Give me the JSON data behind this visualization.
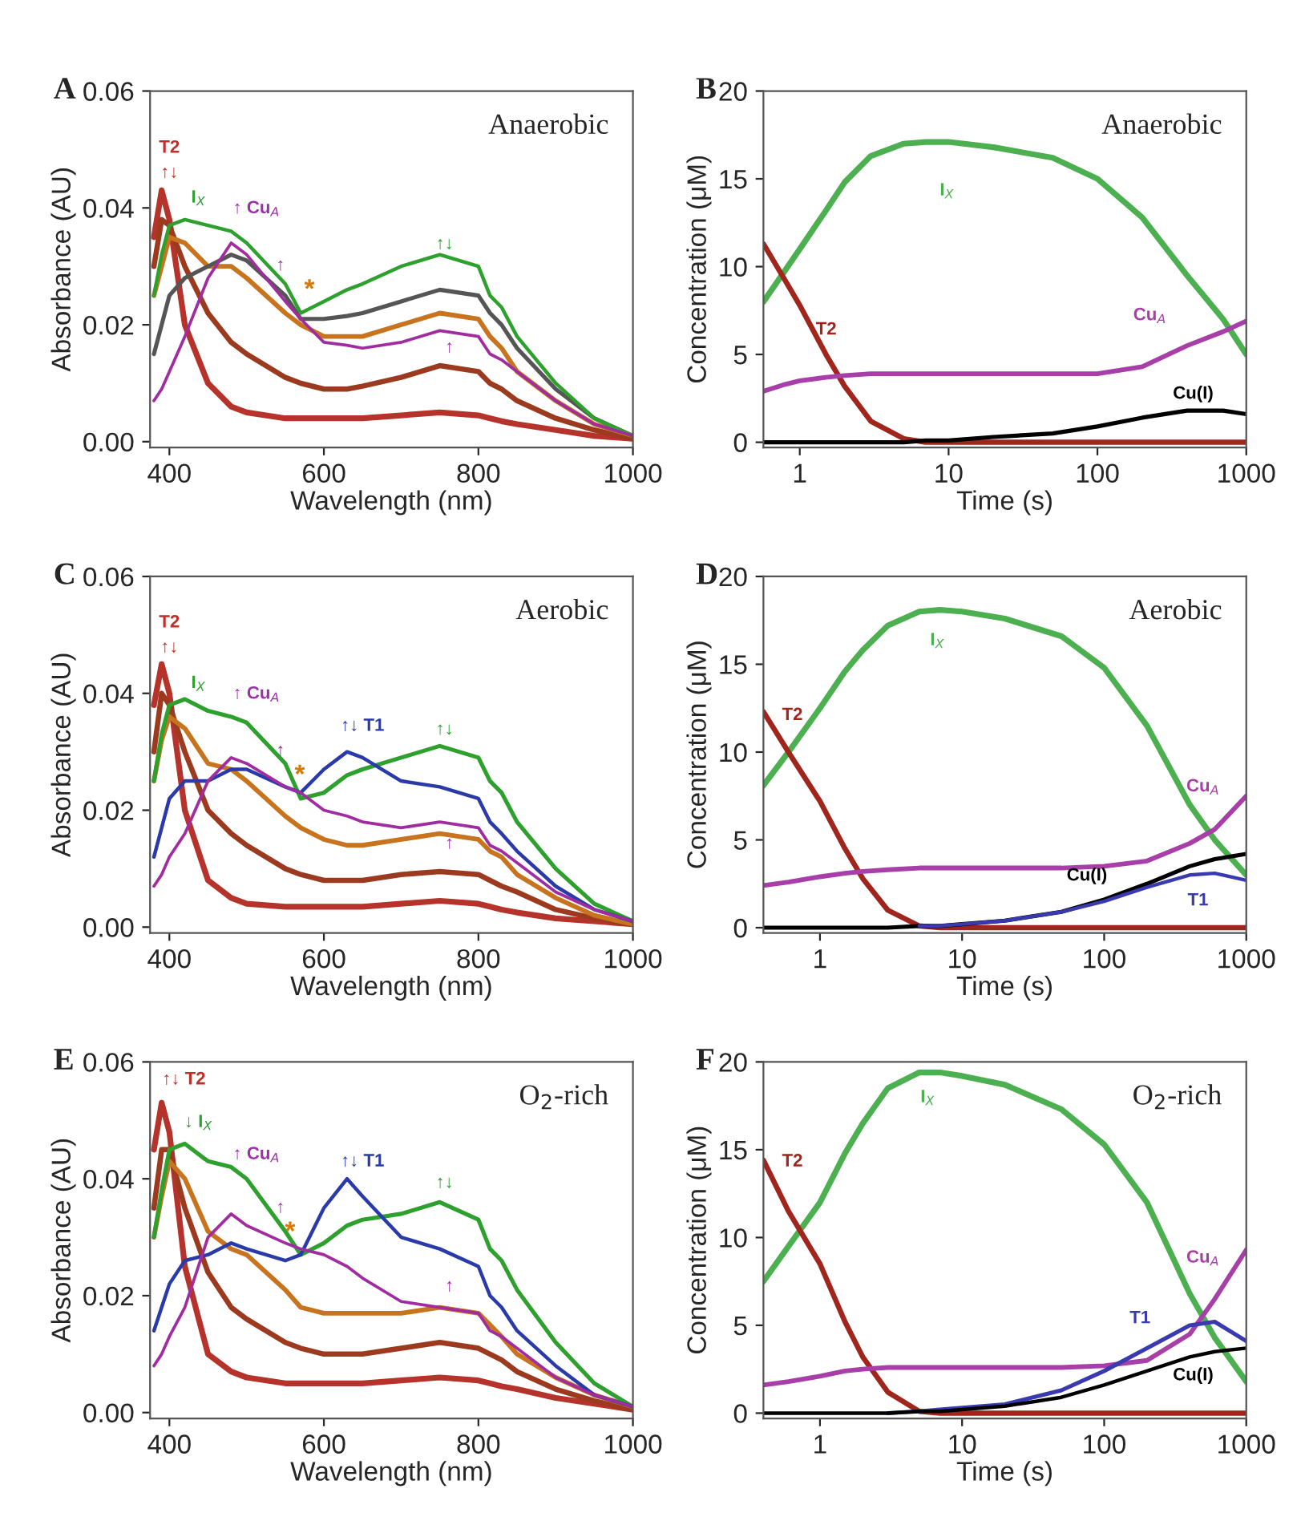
{
  "chart_data": [
    {
      "type": "line",
      "title": "A",
      "xlabel": "Wavelength (nm)",
      "ylabel": "Absorbance (AU)",
      "xlim": [
        375,
        1000
      ],
      "ylim": [
        -0.001,
        0.06
      ],
      "xticks": [
        400,
        600,
        800,
        1000
      ],
      "yticks": [
        {
          "value": 0,
          "label": "0.00"
        },
        {
          "value": 0.02,
          "label": "0.02"
        },
        {
          "value": 0.04,
          "label": "0.04"
        },
        {
          "value": 0.06,
          "label": "0.06"
        }
      ],
      "x": [
        380,
        390,
        400,
        420,
        450,
        480,
        500,
        550,
        570,
        600,
        630,
        650,
        700,
        750,
        800,
        815,
        830,
        850,
        900,
        950,
        1000
      ],
      "series": [
        {
          "color": "#b5332a",
          "values": [
            0.035,
            0.043,
            0.038,
            0.02,
            0.01,
            0.006,
            0.005,
            0.004,
            0.004,
            0.004,
            0.004,
            0.004,
            0.0045,
            0.005,
            0.0045,
            0.004,
            0.0035,
            0.003,
            0.002,
            0.001,
            0.0005
          ]
        },
        {
          "color": "#9b3a1e",
          "values": [
            0.03,
            0.038,
            0.037,
            0.03,
            0.022,
            0.017,
            0.015,
            0.011,
            0.01,
            0.009,
            0.009,
            0.0095,
            0.011,
            0.013,
            0.012,
            0.01,
            0.009,
            0.007,
            0.004,
            0.002,
            0.0005
          ]
        },
        {
          "color": "#c8741e",
          "values": [
            0.025,
            0.03,
            0.035,
            0.034,
            0.03,
            0.03,
            0.028,
            0.022,
            0.02,
            0.018,
            0.018,
            0.018,
            0.02,
            0.022,
            0.021,
            0.018,
            0.016,
            0.012,
            0.007,
            0.003,
            0.001
          ]
        },
        {
          "color": "#555555",
          "values": [
            0.015,
            0.02,
            0.025,
            0.028,
            0.03,
            0.032,
            0.031,
            0.025,
            0.021,
            0.021,
            0.0215,
            0.022,
            0.024,
            0.026,
            0.025,
            0.022,
            0.02,
            0.016,
            0.009,
            0.004,
            0.001
          ]
        },
        {
          "color": "#2ea02e",
          "values": [
            0.025,
            0.032,
            0.037,
            0.038,
            0.037,
            0.036,
            0.034,
            0.027,
            0.022,
            0.024,
            0.026,
            0.027,
            0.03,
            0.032,
            0.03,
            0.025,
            0.023,
            0.018,
            0.01,
            0.004,
            0.001
          ]
        },
        {
          "color": "#a02ca0",
          "values": [
            0.007,
            0.009,
            0.012,
            0.018,
            0.028,
            0.034,
            0.032,
            0.024,
            0.021,
            0.017,
            0.0165,
            0.016,
            0.017,
            0.019,
            0.018,
            0.015,
            0.014,
            0.012,
            0.007,
            0.003,
            0.001
          ]
        }
      ],
      "annotations": [
        "Anaerobic",
        "T2",
        "↑↓",
        "I$_{X}$",
        "↑ Cu$_{A}$",
        "↑",
        "*",
        "↑↓",
        "↑"
      ]
    },
    {
      "type": "line",
      "title": "B",
      "xlabel": "Time (s)",
      "ylabel": "Concentration (μM)",
      "log": "x",
      "xlim": [
        0.57,
        1000
      ],
      "ylim": [
        -0.3,
        20
      ],
      "xticks": [
        1,
        10,
        100,
        1000
      ],
      "yticks": [
        0,
        5,
        10,
        15,
        20
      ],
      "x": [
        0.57,
        0.8,
        1,
        1.5,
        2,
        3,
        5,
        7,
        10,
        20,
        50,
        100,
        200,
        400,
        700,
        1000
      ],
      "series": [
        {
          "name": "I$_{X}$",
          "color": "#4caf50",
          "values": [
            8,
            9.8,
            11,
            13.2,
            14.8,
            16.3,
            17.0,
            17.1,
            17.1,
            16.8,
            16.2,
            15.0,
            12.8,
            9.5,
            7.0,
            5.0
          ]
        },
        {
          "name": "T2",
          "color": "#a0251c",
          "values": [
            11.3,
            9.2,
            7.8,
            5.0,
            3.2,
            1.2,
            0.2,
            0,
            0,
            0,
            0,
            0,
            0,
            0,
            0,
            0
          ]
        },
        {
          "name": "Cu$_{A}$",
          "color": "#a83ea8",
          "values": [
            2.9,
            3.3,
            3.5,
            3.7,
            3.8,
            3.9,
            3.9,
            3.9,
            3.9,
            3.9,
            3.9,
            3.9,
            4.3,
            5.5,
            6.3,
            6.9
          ]
        },
        {
          "name": "Cu(I)",
          "color": "#000000",
          "values": [
            0,
            0,
            0,
            0,
            0,
            0,
            0,
            0.1,
            0.1,
            0.3,
            0.5,
            0.9,
            1.4,
            1.8,
            1.8,
            1.6
          ]
        }
      ],
      "annotations": [
        "Anaerobic"
      ]
    },
    {
      "type": "line",
      "title": "C",
      "xlabel": "Wavelength (nm)",
      "ylabel": "Absorbance (AU)",
      "xlim": [
        375,
        1000
      ],
      "ylim": [
        -0.001,
        0.06
      ],
      "xticks": [
        400,
        600,
        800,
        1000
      ],
      "yticks": [
        {
          "value": 0,
          "label": "0.00"
        },
        {
          "value": 0.02,
          "label": "0.02"
        },
        {
          "value": 0.04,
          "label": "0.04"
        },
        {
          "value": 0.06,
          "label": "0.06"
        }
      ],
      "x": [
        380,
        390,
        400,
        420,
        450,
        480,
        500,
        550,
        570,
        600,
        630,
        650,
        700,
        750,
        800,
        815,
        830,
        850,
        900,
        950,
        1000
      ],
      "series": [
        {
          "color": "#b5332a",
          "values": [
            0.038,
            0.045,
            0.04,
            0.02,
            0.008,
            0.005,
            0.004,
            0.0035,
            0.0035,
            0.0035,
            0.0035,
            0.0035,
            0.004,
            0.0045,
            0.004,
            0.0035,
            0.003,
            0.0025,
            0.0015,
            0.001,
            0.0005
          ]
        },
        {
          "color": "#9b3a1e",
          "values": [
            0.03,
            0.04,
            0.038,
            0.03,
            0.02,
            0.016,
            0.014,
            0.01,
            0.009,
            0.008,
            0.008,
            0.008,
            0.009,
            0.0095,
            0.009,
            0.008,
            0.007,
            0.006,
            0.003,
            0.0015,
            0.0005
          ]
        },
        {
          "color": "#c8741e",
          "values": [
            0.025,
            0.032,
            0.036,
            0.034,
            0.028,
            0.027,
            0.025,
            0.019,
            0.017,
            0.015,
            0.014,
            0.014,
            0.015,
            0.016,
            0.015,
            0.013,
            0.012,
            0.009,
            0.005,
            0.002,
            0.0005
          ]
        },
        {
          "color": "#2ea02e",
          "values": [
            0.025,
            0.033,
            0.038,
            0.039,
            0.037,
            0.036,
            0.035,
            0.028,
            0.022,
            0.023,
            0.026,
            0.027,
            0.029,
            0.031,
            0.029,
            0.025,
            0.023,
            0.018,
            0.01,
            0.004,
            0.001
          ]
        },
        {
          "color": "#2a3aa8",
          "values": [
            0.012,
            0.017,
            0.022,
            0.025,
            0.025,
            0.027,
            0.027,
            0.024,
            0.023,
            0.027,
            0.03,
            0.029,
            0.025,
            0.024,
            0.022,
            0.018,
            0.016,
            0.013,
            0.007,
            0.003,
            0.001
          ]
        },
        {
          "color": "#a02ca0",
          "values": [
            0.007,
            0.009,
            0.012,
            0.016,
            0.025,
            0.029,
            0.028,
            0.024,
            0.023,
            0.02,
            0.019,
            0.018,
            0.017,
            0.018,
            0.017,
            0.014,
            0.013,
            0.011,
            0.006,
            0.003,
            0.001
          ]
        }
      ],
      "annotations": [
        "Aerobic",
        "T2",
        "↑↓",
        "I$_{X}$",
        "↑ Cu$_{A}$",
        "↑",
        "*",
        "↑↓ T1",
        "↑↓",
        "↑"
      ]
    },
    {
      "type": "line",
      "title": "D",
      "xlabel": "Time (s)",
      "ylabel": "Concentration (μM)",
      "log": "x",
      "xlim": [
        0.4,
        1000
      ],
      "ylim": [
        -0.3,
        20
      ],
      "xticks": [
        1,
        10,
        100,
        1000
      ],
      "yticks": [
        0,
        5,
        10,
        15,
        20
      ],
      "x": [
        0.4,
        0.6,
        1,
        1.5,
        2,
        3,
        5,
        7,
        10,
        20,
        50,
        100,
        200,
        400,
        600,
        1000
      ],
      "series": [
        {
          "name": "I$_{X}$",
          "color": "#4caf50",
          "values": [
            8.1,
            10,
            12.5,
            14.6,
            15.8,
            17.2,
            18.0,
            18.1,
            18.0,
            17.6,
            16.6,
            14.8,
            11.5,
            7.0,
            5.0,
            3.0
          ]
        },
        {
          "name": "T2",
          "color": "#a0251c",
          "values": [
            12.3,
            10,
            7.2,
            4.5,
            2.8,
            1.0,
            0.1,
            0,
            0,
            0,
            0,
            0,
            0,
            0,
            0,
            0
          ]
        },
        {
          "name": "Cu$_{A}$",
          "color": "#a83ea8",
          "values": [
            2.4,
            2.6,
            2.9,
            3.1,
            3.2,
            3.3,
            3.4,
            3.4,
            3.4,
            3.4,
            3.4,
            3.5,
            3.8,
            4.8,
            5.6,
            7.5
          ]
        },
        {
          "name": "Cu(I)",
          "color": "#000000",
          "values": [
            0,
            0,
            0,
            0,
            0,
            0,
            0.1,
            0.1,
            0.2,
            0.4,
            0.9,
            1.6,
            2.5,
            3.5,
            3.9,
            4.2
          ]
        },
        {
          "name": "T1",
          "color": "#3a3ab0",
          "values": [
            null,
            null,
            null,
            null,
            null,
            null,
            0.1,
            0.1,
            0.2,
            0.4,
            0.9,
            1.5,
            2.3,
            3.0,
            3.1,
            2.7
          ]
        }
      ],
      "annotations": [
        "Aerobic"
      ]
    },
    {
      "type": "line",
      "title": "E",
      "xlabel": "Wavelength (nm)",
      "ylabel": "Absorbance (AU)",
      "xlim": [
        375,
        1000
      ],
      "ylim": [
        -0.001,
        0.06
      ],
      "xticks": [
        400,
        600,
        800,
        1000
      ],
      "yticks": [
        {
          "value": 0,
          "label": "0.00"
        },
        {
          "value": 0.02,
          "label": "0.02"
        },
        {
          "value": 0.04,
          "label": "0.04"
        },
        {
          "value": 0.06,
          "label": "0.06"
        }
      ],
      "x": [
        380,
        390,
        400,
        420,
        450,
        480,
        500,
        550,
        570,
        600,
        630,
        650,
        700,
        750,
        800,
        815,
        830,
        850,
        900,
        950,
        1000
      ],
      "series": [
        {
          "color": "#b5332a",
          "values": [
            0.045,
            0.053,
            0.048,
            0.025,
            0.01,
            0.007,
            0.006,
            0.005,
            0.005,
            0.005,
            0.005,
            0.005,
            0.0055,
            0.006,
            0.0055,
            0.005,
            0.0045,
            0.004,
            0.0025,
            0.0015,
            0.0005
          ]
        },
        {
          "color": "#9b3a1e",
          "values": [
            0.035,
            0.045,
            0.045,
            0.035,
            0.024,
            0.018,
            0.016,
            0.012,
            0.011,
            0.01,
            0.01,
            0.01,
            0.011,
            0.012,
            0.011,
            0.01,
            0.009,
            0.007,
            0.004,
            0.002,
            0.0005
          ]
        },
        {
          "color": "#c8741e",
          "values": [
            0.03,
            0.037,
            0.043,
            0.04,
            0.031,
            0.028,
            0.027,
            0.021,
            0.018,
            0.017,
            0.017,
            0.017,
            0.017,
            0.018,
            0.017,
            0.015,
            0.013,
            0.01,
            0.006,
            0.003,
            0.001
          ]
        },
        {
          "color": "#2ea02e",
          "values": [
            0.03,
            0.038,
            0.045,
            0.046,
            0.043,
            0.042,
            0.04,
            0.031,
            0.027,
            0.029,
            0.032,
            0.033,
            0.034,
            0.036,
            0.033,
            0.028,
            0.026,
            0.021,
            0.012,
            0.005,
            0.001
          ]
        },
        {
          "color": "#2a3aa8",
          "values": [
            0.014,
            0.018,
            0.022,
            0.026,
            0.027,
            0.029,
            0.028,
            0.026,
            0.027,
            0.035,
            0.04,
            0.037,
            0.03,
            0.028,
            0.025,
            0.02,
            0.018,
            0.014,
            0.008,
            0.003,
            0.001
          ]
        },
        {
          "color": "#a02ca0",
          "values": [
            0.008,
            0.01,
            0.013,
            0.018,
            0.03,
            0.034,
            0.032,
            0.029,
            0.028,
            0.027,
            0.025,
            0.023,
            0.019,
            0.018,
            0.017,
            0.014,
            0.013,
            0.011,
            0.006,
            0.003,
            0.001
          ]
        }
      ],
      "annotations": [
        "O$_{2}$-rich",
        "↑↓ T2",
        "↓ I$_{X}$",
        "↑ Cu$_{A}$",
        "↑",
        "*",
        "↑↓ T1",
        "↑↓",
        "↑"
      ]
    },
    {
      "type": "line",
      "title": "F",
      "xlabel": "Time (s)",
      "ylabel": "Concentration (μM)",
      "log": "x",
      "xlim": [
        0.4,
        1000
      ],
      "ylim": [
        -0.3,
        20
      ],
      "xticks": [
        1,
        10,
        100,
        1000
      ],
      "yticks": [
        0,
        5,
        10,
        15,
        20
      ],
      "x": [
        0.4,
        0.6,
        1,
        1.5,
        2,
        3,
        5,
        7,
        10,
        20,
        50,
        100,
        200,
        400,
        600,
        1000
      ],
      "series": [
        {
          "name": "I$_{X}$",
          "color": "#4caf50",
          "values": [
            7.5,
            9.5,
            12,
            14.8,
            16.5,
            18.5,
            19.4,
            19.4,
            19.2,
            18.7,
            17.3,
            15.3,
            12,
            6.8,
            4.3,
            1.8
          ]
        },
        {
          "name": "T2",
          "color": "#a0251c",
          "values": [
            14.4,
            11.5,
            8.5,
            5.2,
            3.2,
            1.2,
            0.1,
            0,
            0,
            0,
            0,
            0,
            0,
            0,
            0,
            0
          ]
        },
        {
          "name": "Cu$_{A}$",
          "color": "#a83ea8",
          "values": [
            1.6,
            1.8,
            2.1,
            2.4,
            2.5,
            2.6,
            2.6,
            2.6,
            2.6,
            2.6,
            2.6,
            2.7,
            3.0,
            4.5,
            6.5,
            9.3
          ]
        },
        {
          "name": "T1",
          "color": "#3a3ab0",
          "values": [
            null,
            null,
            null,
            null,
            null,
            0,
            0.1,
            0.2,
            0.3,
            0.5,
            1.3,
            2.4,
            3.7,
            5.0,
            5.2,
            4.1
          ]
        },
        {
          "name": "Cu(I)",
          "color": "#000000",
          "values": [
            0,
            0,
            0,
            0,
            0,
            0,
            0.1,
            0.1,
            0.2,
            0.4,
            0.9,
            1.6,
            2.4,
            3.2,
            3.5,
            3.7
          ]
        }
      ],
      "annotations": [
        "O$_{2}$-rich"
      ]
    }
  ]
}
